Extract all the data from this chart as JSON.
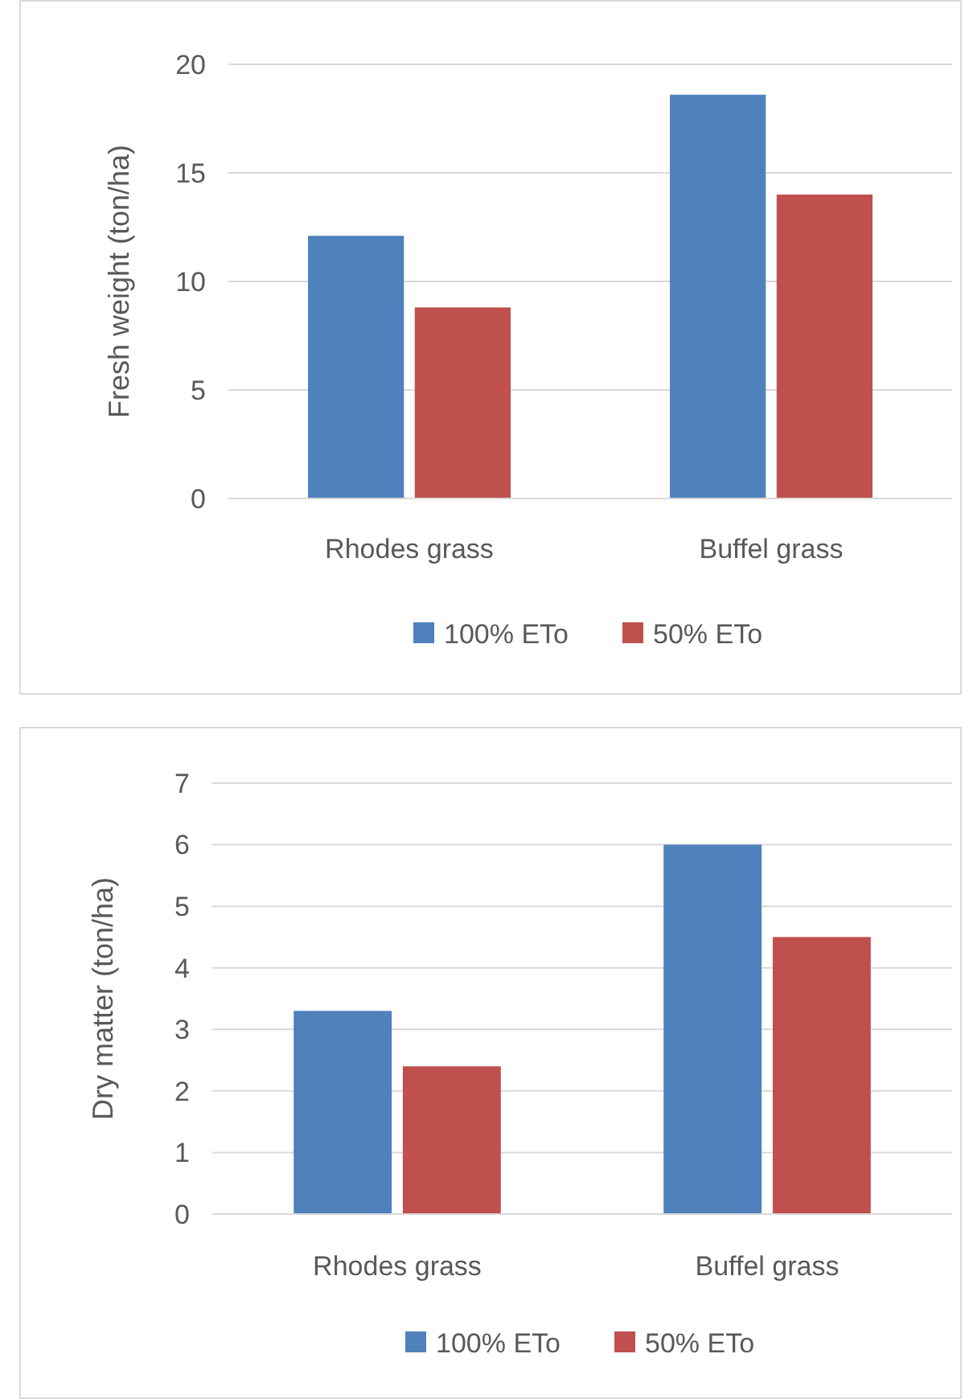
{
  "chart_data": [
    {
      "type": "bar",
      "ylabel": "Fresh weight (ton/ha)",
      "categories": [
        "Rhodes grass",
        "Buffel grass"
      ],
      "series": [
        {
          "name": "100% ETo",
          "color": "#4f81bd",
          "values": [
            12.1,
            18.6
          ]
        },
        {
          "name": "50% ETo",
          "color": "#c0504d",
          "values": [
            8.8,
            14.0
          ]
        }
      ],
      "ylim": [
        0,
        20
      ],
      "yticks": [
        0,
        5,
        10,
        15,
        20
      ],
      "grid": "y",
      "legend": "bottom"
    },
    {
      "type": "bar",
      "ylabel": "Dry matter (ton/ha)",
      "categories": [
        "Rhodes grass",
        "Buffel grass"
      ],
      "series": [
        {
          "name": "100% ETo",
          "color": "#4f81bd",
          "values": [
            3.3,
            6.0
          ]
        },
        {
          "name": "50% ETo",
          "color": "#c0504d",
          "values": [
            2.4,
            4.5
          ]
        }
      ],
      "ylim": [
        0,
        7
      ],
      "yticks": [
        0,
        1,
        2,
        3,
        4,
        5,
        6,
        7
      ],
      "grid": "y",
      "legend": "bottom"
    }
  ]
}
